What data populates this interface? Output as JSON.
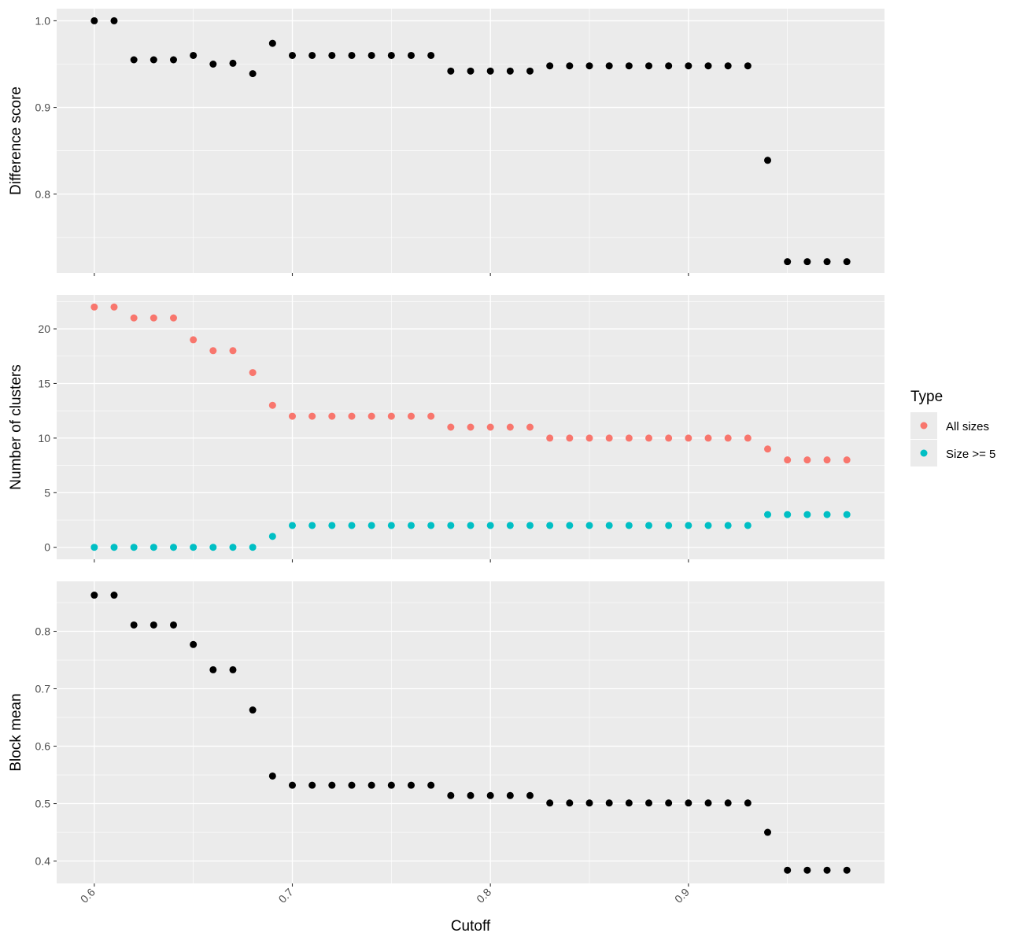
{
  "chart_data": [
    {
      "type": "scatter",
      "ylabel": "Difference score",
      "xlabel": "",
      "xlim": [
        0.581,
        0.999
      ],
      "ylim": [
        0.709,
        1.014
      ],
      "yticks": [
        0.8,
        0.9,
        1.0
      ],
      "ytick_labels": [
        "0.8",
        "0.9",
        "1.0"
      ],
      "series": [
        {
          "color": "#000000",
          "x": [
            0.6,
            0.61,
            0.62,
            0.63,
            0.64,
            0.65,
            0.66,
            0.67,
            0.68,
            0.69,
            0.7,
            0.71,
            0.72,
            0.73,
            0.74,
            0.75,
            0.76,
            0.77,
            0.78,
            0.79,
            0.8,
            0.81,
            0.82,
            0.83,
            0.84,
            0.85,
            0.86,
            0.87,
            0.88,
            0.89,
            0.9,
            0.91,
            0.92,
            0.93,
            0.94,
            0.95,
            0.96,
            0.97,
            0.98
          ],
          "values": [
            1.0,
            1.0,
            0.955,
            0.955,
            0.955,
            0.96,
            0.95,
            0.951,
            0.939,
            0.974,
            0.96,
            0.96,
            0.96,
            0.96,
            0.96,
            0.96,
            0.96,
            0.96,
            0.942,
            0.942,
            0.942,
            0.942,
            0.942,
            0.948,
            0.948,
            0.948,
            0.948,
            0.948,
            0.948,
            0.948,
            0.948,
            0.948,
            0.948,
            0.948,
            0.839,
            0.722,
            0.722,
            0.722,
            0.722
          ]
        }
      ]
    },
    {
      "type": "scatter",
      "ylabel": "Number of clusters",
      "xlabel": "",
      "xlim": [
        0.581,
        0.999
      ],
      "ylim": [
        -1.1,
        23.1
      ],
      "yticks": [
        0,
        5,
        10,
        15,
        20
      ],
      "ytick_labels": [
        "0",
        "5",
        "10",
        "15",
        "20"
      ],
      "series": [
        {
          "name": "All sizes",
          "color": "#F8766D",
          "x": [
            0.6,
            0.61,
            0.62,
            0.63,
            0.64,
            0.65,
            0.66,
            0.67,
            0.68,
            0.69,
            0.7,
            0.71,
            0.72,
            0.73,
            0.74,
            0.75,
            0.76,
            0.77,
            0.78,
            0.79,
            0.8,
            0.81,
            0.82,
            0.83,
            0.84,
            0.85,
            0.86,
            0.87,
            0.88,
            0.89,
            0.9,
            0.91,
            0.92,
            0.93,
            0.94,
            0.95,
            0.96,
            0.97,
            0.98
          ],
          "values": [
            22,
            22,
            21,
            21,
            21,
            19,
            18,
            18,
            16,
            13,
            12,
            12,
            12,
            12,
            12,
            12,
            12,
            12,
            11,
            11,
            11,
            11,
            11,
            10,
            10,
            10,
            10,
            10,
            10,
            10,
            10,
            10,
            10,
            10,
            9,
            8,
            8,
            8,
            8
          ]
        },
        {
          "name": "Size >= 5",
          "color": "#00BFC4",
          "x": [
            0.6,
            0.61,
            0.62,
            0.63,
            0.64,
            0.65,
            0.66,
            0.67,
            0.68,
            0.69,
            0.7,
            0.71,
            0.72,
            0.73,
            0.74,
            0.75,
            0.76,
            0.77,
            0.78,
            0.79,
            0.8,
            0.81,
            0.82,
            0.83,
            0.84,
            0.85,
            0.86,
            0.87,
            0.88,
            0.89,
            0.9,
            0.91,
            0.92,
            0.93,
            0.94,
            0.95,
            0.96,
            0.97,
            0.98
          ],
          "values": [
            0,
            0,
            0,
            0,
            0,
            0,
            0,
            0,
            0,
            1,
            2,
            2,
            2,
            2,
            2,
            2,
            2,
            2,
            2,
            2,
            2,
            2,
            2,
            2,
            2,
            2,
            2,
            2,
            2,
            2,
            2,
            2,
            2,
            2,
            3,
            3,
            3,
            3,
            3
          ]
        }
      ]
    },
    {
      "type": "scatter",
      "ylabel": "Block mean",
      "xlabel": "Cutoff",
      "xlim": [
        0.581,
        0.999
      ],
      "ylim": [
        0.361,
        0.887
      ],
      "yticks": [
        0.4,
        0.5,
        0.6,
        0.7,
        0.8
      ],
      "ytick_labels": [
        "0.4",
        "0.5",
        "0.6",
        "0.7",
        "0.8"
      ],
      "series": [
        {
          "color": "#000000",
          "x": [
            0.6,
            0.61,
            0.62,
            0.63,
            0.64,
            0.65,
            0.66,
            0.67,
            0.68,
            0.69,
            0.7,
            0.71,
            0.72,
            0.73,
            0.74,
            0.75,
            0.76,
            0.77,
            0.78,
            0.79,
            0.8,
            0.81,
            0.82,
            0.83,
            0.84,
            0.85,
            0.86,
            0.87,
            0.88,
            0.89,
            0.9,
            0.91,
            0.92,
            0.93,
            0.94,
            0.95,
            0.96,
            0.97,
            0.98
          ],
          "values": [
            0.863,
            0.863,
            0.811,
            0.811,
            0.811,
            0.777,
            0.733,
            0.733,
            0.663,
            0.548,
            0.532,
            0.532,
            0.532,
            0.532,
            0.532,
            0.532,
            0.532,
            0.532,
            0.514,
            0.514,
            0.514,
            0.514,
            0.514,
            0.501,
            0.501,
            0.501,
            0.501,
            0.501,
            0.501,
            0.501,
            0.501,
            0.501,
            0.501,
            0.501,
            0.45,
            0.384,
            0.384,
            0.384,
            0.384
          ]
        }
      ]
    }
  ],
  "x_axis": {
    "title": "Cutoff",
    "ticks": [
      0.6,
      0.7,
      0.8,
      0.9
    ],
    "tick_labels": [
      "0.6",
      "0.7",
      "0.8",
      "0.9"
    ],
    "label_rotation_deg": -45
  },
  "legend": {
    "title": "Type",
    "placement": "right",
    "entries": [
      {
        "label": "All sizes",
        "color": "#F8766D"
      },
      {
        "label": "Size >= 5",
        "color": "#00BFC4"
      }
    ]
  },
  "theme": {
    "panel_background": "#EBEBEB",
    "grid_major": "#FFFFFF",
    "tick_color": "#333333",
    "tick_label_color": "#4D4D4D"
  }
}
